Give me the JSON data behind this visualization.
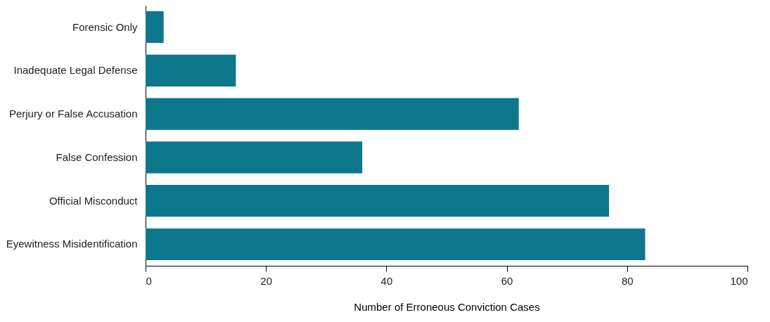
{
  "chart_data": {
    "type": "bar",
    "orientation": "horizontal",
    "xlabel": "Number of Erroneous Conviction Cases",
    "categories": [
      "Forensic Only",
      "Inadequate Legal Defense",
      "Perjury or False Accusation",
      "False Confession",
      "Official Misconduct",
      "Eyewitness Misidentification"
    ],
    "values": [
      3,
      15,
      62,
      36,
      77,
      83
    ],
    "color": "#0d788b",
    "xlim": [
      0,
      100
    ],
    "xticks": [
      0,
      20,
      40,
      60,
      80,
      100
    ],
    "grid": false
  }
}
